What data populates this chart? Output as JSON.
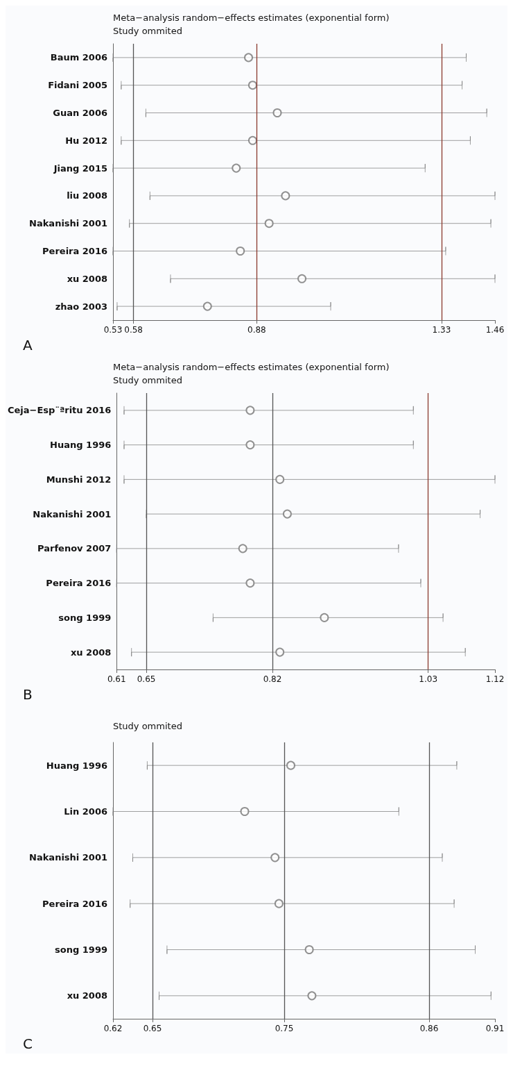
{
  "chart_data": [
    {
      "type": "scatter",
      "orientation": "horizontal",
      "title": "Meta−analysis random−effects estimates (exponential form)",
      "subtitle": "Study ommited",
      "marker": "circle",
      "annotations": [
        "A"
      ],
      "categories": [
        "Baum 2006",
        "Fidani 2005",
        "Guan 2006",
        "Hu 2012",
        "Jiang 2015",
        "liu 2008",
        "Nakanishi 2001",
        "Pereira 2016",
        "xu 2008",
        "zhao 2003"
      ],
      "series": [
        {
          "color": "#777777",
          "values": [
            0.86,
            0.87,
            0.93,
            0.87,
            0.83,
            0.95,
            0.91,
            0.84,
            0.99,
            0.76
          ],
          "errors": [
            [
              0.53,
              1.39
            ],
            [
              0.55,
              1.38
            ],
            [
              0.61,
              1.44
            ],
            [
              0.55,
              1.4
            ],
            [
              0.53,
              1.29
            ],
            [
              0.62,
              1.46
            ],
            [
              0.57,
              1.45
            ],
            [
              0.53,
              1.34
            ],
            [
              0.67,
              1.46
            ],
            [
              0.54,
              1.06
            ]
          ]
        }
      ],
      "xlim": [
        0.53,
        1.46
      ],
      "xticks": [
        0.53,
        0.58,
        0.88,
        1.33,
        1.46
      ],
      "ref_lines": [
        {
          "axis": "x",
          "value": 0.58,
          "color": "#555555"
        },
        {
          "axis": "x",
          "value": 0.88,
          "color": "#8b3a2e"
        },
        {
          "axis": "x",
          "value": 1.33,
          "color": "#8b3a2e"
        }
      ]
    },
    {
      "type": "scatter",
      "orientation": "horizontal",
      "title": "Meta−analysis random−effects estimates (exponential form)",
      "subtitle": "Study ommited",
      "marker": "circle",
      "annotations": [
        "B"
      ],
      "categories": [
        "Ceja−Esp¨ªritu 2016",
        "Huang 1996",
        "Munshi 2012",
        "Nakanishi 2001",
        "Parfenov 2007",
        "Pereira 2016",
        "song 1999",
        "xu 2008"
      ],
      "series": [
        {
          "color": "#777777",
          "values": [
            0.79,
            0.79,
            0.83,
            0.84,
            0.78,
            0.79,
            0.89,
            0.83
          ],
          "errors": [
            [
              0.62,
              1.01
            ],
            [
              0.62,
              1.01
            ],
            [
              0.62,
              1.12
            ],
            [
              0.65,
              1.1
            ],
            [
              0.61,
              0.99
            ],
            [
              0.61,
              1.02
            ],
            [
              0.74,
              1.05
            ],
            [
              0.63,
              1.08
            ]
          ]
        }
      ],
      "xlim": [
        0.61,
        1.12
      ],
      "xticks": [
        0.61,
        0.65,
        0.82,
        1.03,
        1.12
      ],
      "ref_lines": [
        {
          "axis": "x",
          "value": 0.65,
          "color": "#555555"
        },
        {
          "axis": "x",
          "value": 0.82,
          "color": "#555555"
        },
        {
          "axis": "x",
          "value": 1.03,
          "color": "#8b3a2e"
        }
      ]
    },
    {
      "type": "scatter",
      "orientation": "horizontal",
      "subtitle": "Study ommited",
      "marker": "circle",
      "annotations": [
        "C"
      ],
      "categories": [
        "Huang 1996",
        "Lin 2006",
        "Nakanishi 2001",
        "Pereira 2016",
        "song 1999",
        "xu 2008"
      ],
      "series": [
        {
          "color": "#777777",
          "values": [
            0.755,
            0.72,
            0.743,
            0.746,
            0.769,
            0.771
          ],
          "errors": [
            [
              0.646,
              0.881
            ],
            [
              0.62,
              0.837
            ],
            [
              0.635,
              0.87
            ],
            [
              0.633,
              0.879
            ],
            [
              0.661,
              0.895
            ],
            [
              0.655,
              0.907
            ]
          ]
        }
      ],
      "xlim": [
        0.62,
        0.91
      ],
      "xticks": [
        0.62,
        0.65,
        0.75,
        0.86,
        0.91
      ],
      "ref_lines": [
        {
          "axis": "x",
          "value": 0.65,
          "color": "#555555"
        },
        {
          "axis": "x",
          "value": 0.75,
          "color": "#555555"
        },
        {
          "axis": "x",
          "value": 0.86,
          "color": "#555555"
        }
      ]
    }
  ]
}
